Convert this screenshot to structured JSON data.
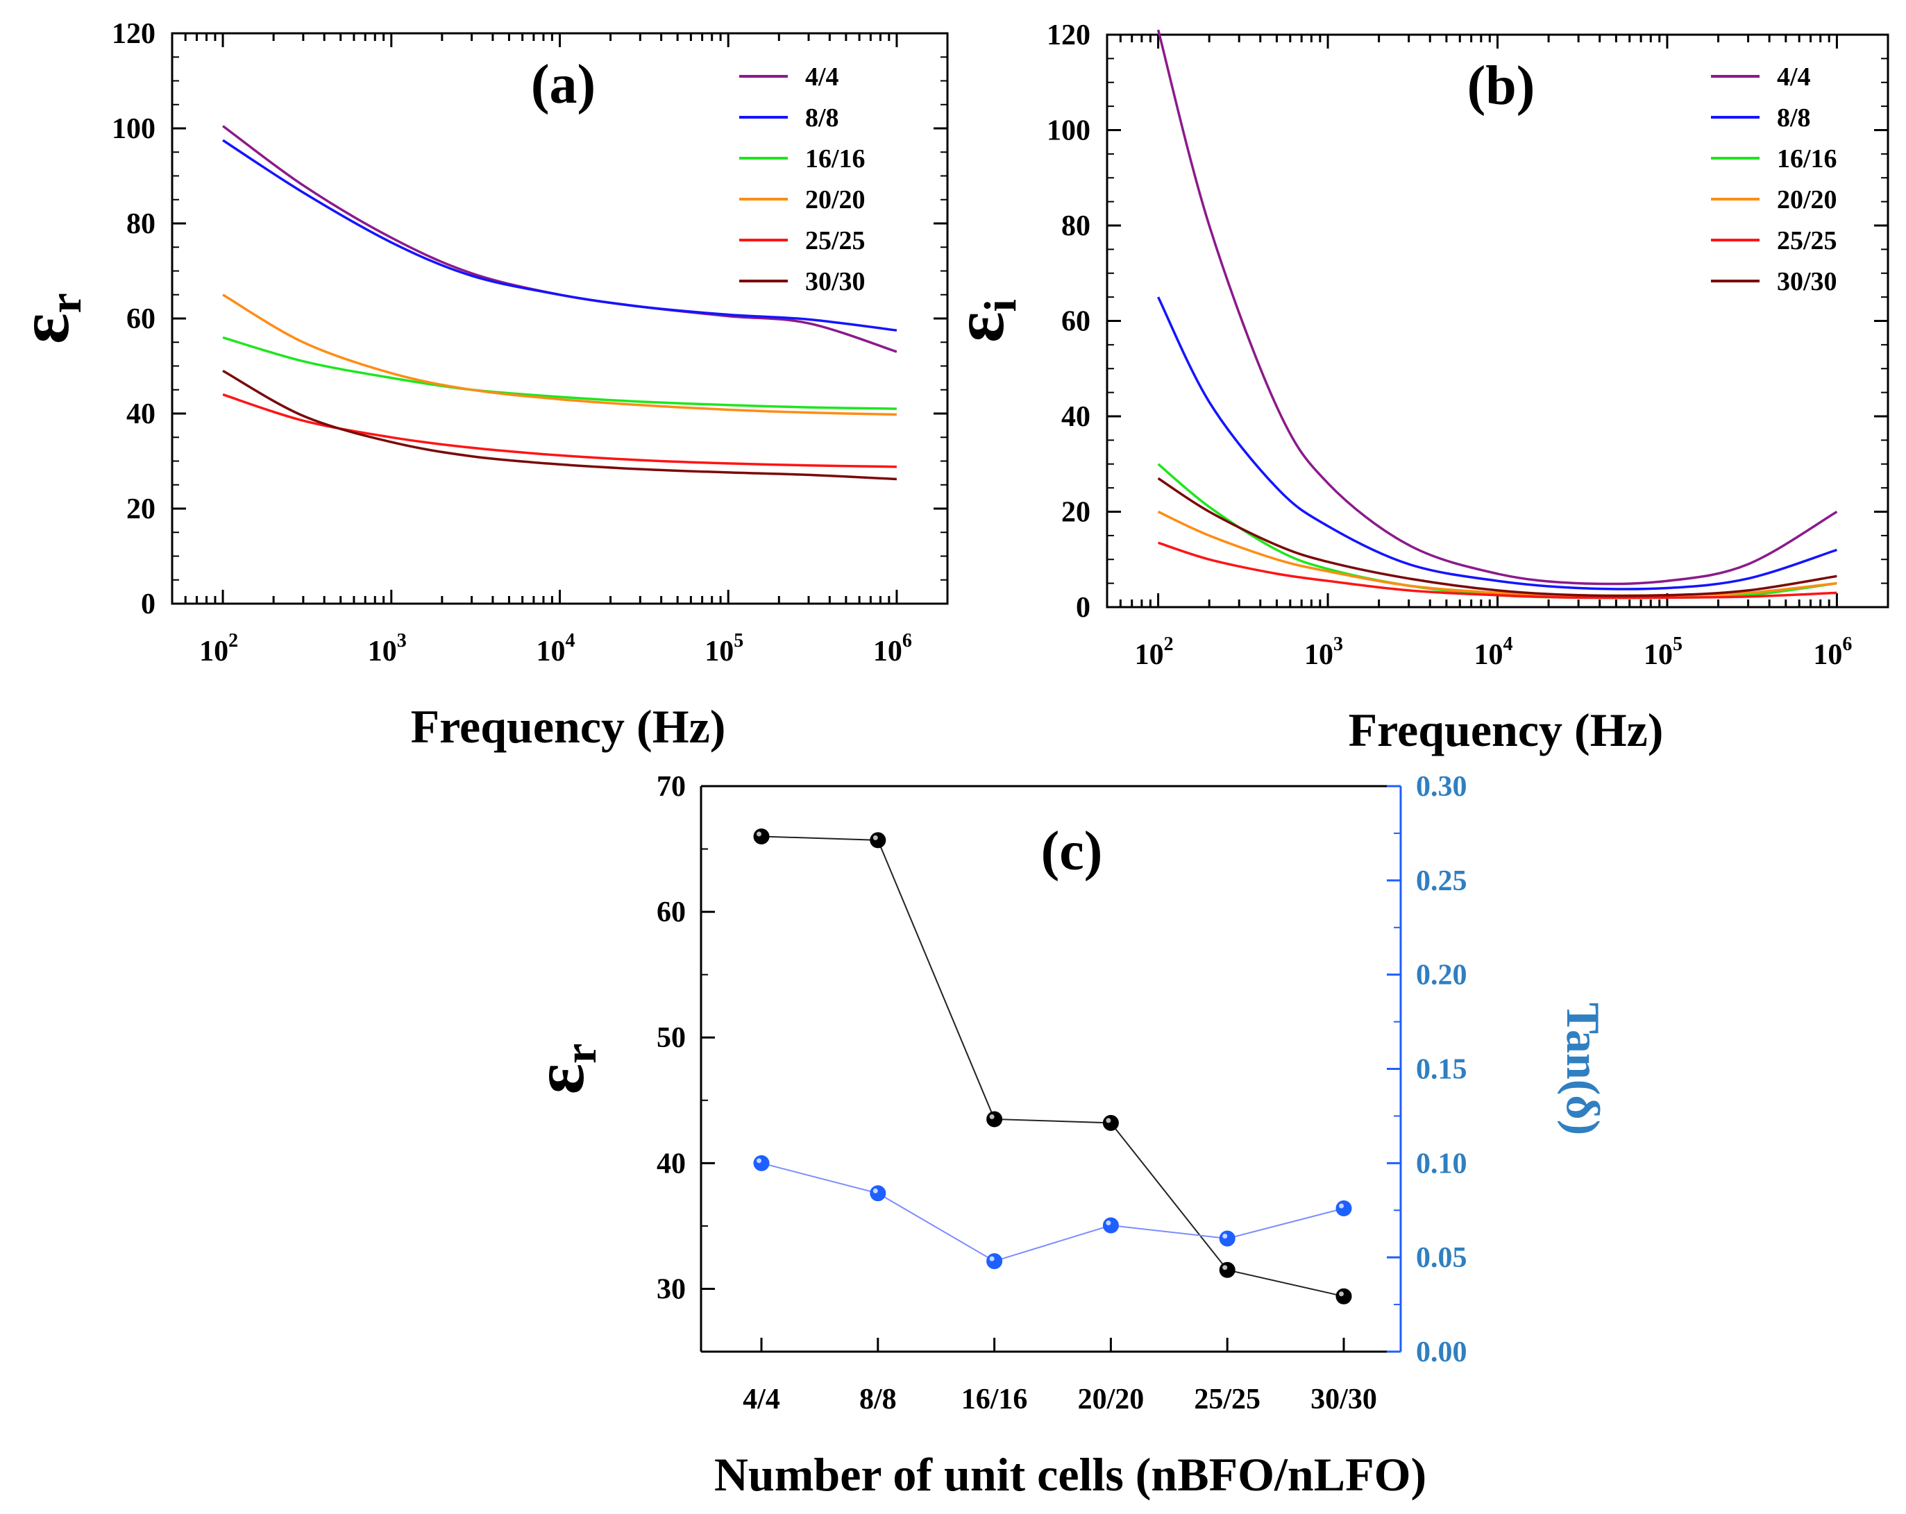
{
  "colors": {
    "4/4": "#8B1A8B",
    "8/8": "#1414FF",
    "16/16": "#1EE61E",
    "20/20": "#FF8C14",
    "25/25": "#FF1414",
    "30/30": "#7A0A0A",
    "tan_axis": "#1E5FFF",
    "tan_label": "#2F7FC1",
    "er_markers": "#000000"
  },
  "chart_data": [
    {
      "id": "a",
      "type": "line",
      "panel_label": "(a)",
      "xlabel": "Frequency (Hz)",
      "ylabel_symbol": "ε",
      "ylabel_sub": "r",
      "x_scale": "log",
      "xlim": [
        50,
        2000000
      ],
      "ylim": [
        0,
        120
      ],
      "x_ticks": [
        {
          "value": 100,
          "base": "10",
          "exp": "2"
        },
        {
          "value": 1000,
          "base": "10",
          "exp": "3"
        },
        {
          "value": 10000,
          "base": "10",
          "exp": "4"
        },
        {
          "value": 100000,
          "base": "10",
          "exp": "5"
        },
        {
          "value": 1000000,
          "base": "10",
          "exp": "6"
        }
      ],
      "y_ticks": [
        "0",
        "20",
        "40",
        "60",
        "80",
        "100",
        "120"
      ],
      "legend_position": "top-right",
      "x": [
        100,
        300,
        1000,
        3000,
        10000,
        30000,
        100000,
        300000,
        1000000
      ],
      "series": [
        {
          "name": "4/4",
          "values": [
            100.5,
            88,
            77,
            69.5,
            65,
            62.5,
            60.5,
            59,
            53
          ]
        },
        {
          "name": "8/8",
          "values": [
            97.5,
            86.5,
            76,
            69,
            65,
            62.5,
            60.8,
            59.8,
            57.5
          ]
        },
        {
          "name": "16/16",
          "values": [
            56,
            51,
            47.5,
            45,
            43.5,
            42.5,
            41.8,
            41.3,
            41
          ]
        },
        {
          "name": "20/20",
          "values": [
            65,
            55,
            48.5,
            45,
            43,
            41.8,
            40.8,
            40.2,
            39.8
          ]
        },
        {
          "name": "25/25",
          "values": [
            44,
            38.5,
            35,
            32.8,
            31.2,
            30.2,
            29.5,
            29.1,
            28.8
          ]
        },
        {
          "name": "30/30",
          "values": [
            49,
            39.5,
            34,
            31,
            29.3,
            28.3,
            27.6,
            27.1,
            26.2
          ]
        }
      ]
    },
    {
      "id": "b",
      "type": "line",
      "panel_label": "(b)",
      "xlabel": "Frequency (Hz)",
      "ylabel_symbol": "ε",
      "ylabel_sub": "i",
      "x_scale": "log",
      "xlim": [
        50,
        2000000
      ],
      "ylim": [
        0,
        120
      ],
      "x_ticks": [
        {
          "value": 100,
          "base": "10",
          "exp": "2"
        },
        {
          "value": 1000,
          "base": "10",
          "exp": "3"
        },
        {
          "value": 10000,
          "base": "10",
          "exp": "4"
        },
        {
          "value": 100000,
          "base": "10",
          "exp": "5"
        },
        {
          "value": 1000000,
          "base": "10",
          "exp": "6"
        }
      ],
      "y_ticks": [
        "0",
        "20",
        "40",
        "60",
        "80",
        "100",
        "120"
      ],
      "legend_position": "top-right",
      "x": [
        100,
        200,
        500,
        1000,
        3000,
        10000,
        30000,
        100000,
        300000,
        1000000
      ],
      "series": [
        {
          "name": "4/4",
          "values": [
            121,
            80,
            42,
            26,
            13,
            7,
            5,
            5.5,
            9,
            20
          ]
        },
        {
          "name": "8/8",
          "values": [
            65,
            43,
            25,
            17,
            9,
            5.5,
            4,
            4,
            6,
            12
          ]
        },
        {
          "name": "16/16",
          "values": [
            30,
            21,
            12,
            8,
            4.5,
            2.5,
            2,
            2,
            2.5,
            5
          ]
        },
        {
          "name": "20/20",
          "values": [
            20,
            15,
            10,
            7.5,
            4.5,
            3,
            2.5,
            2.5,
            3,
            5
          ]
        },
        {
          "name": "25/25",
          "values": [
            13.5,
            10,
            7,
            5.5,
            3.5,
            2.5,
            2,
            2,
            2.2,
            3
          ]
        },
        {
          "name": "30/30",
          "values": [
            27,
            20,
            13,
            9.5,
            6,
            3.5,
            2.5,
            2.5,
            3.5,
            6.5
          ]
        }
      ]
    },
    {
      "id": "c",
      "type": "scatter",
      "panel_label": "(c)",
      "xlabel": "Number of unit cells (nBFO/nLFO)",
      "ylabel_symbol": "ε",
      "ylabel_sub": "r",
      "ylabel_right": "Tan(δ)",
      "categories": [
        "4/4",
        "8/8",
        "16/16",
        "20/20",
        "25/25",
        "30/30"
      ],
      "ylim": [
        25,
        70
      ],
      "ylim_right": [
        0,
        0.3
      ],
      "y_ticks": [
        "30",
        "40",
        "50",
        "60",
        "70"
      ],
      "y_ticks_right": [
        "0.00",
        "0.05",
        "0.10",
        "0.15",
        "0.20",
        "0.25",
        "0.30"
      ],
      "series": [
        {
          "name": "εr",
          "axis": "left",
          "values": [
            66,
            65.7,
            43.5,
            43.2,
            31.5,
            29.4
          ]
        },
        {
          "name": "Tan(δ)",
          "axis": "right",
          "values": [
            0.1,
            0.084,
            0.048,
            0.067,
            0.06,
            0.076
          ]
        }
      ]
    }
  ]
}
